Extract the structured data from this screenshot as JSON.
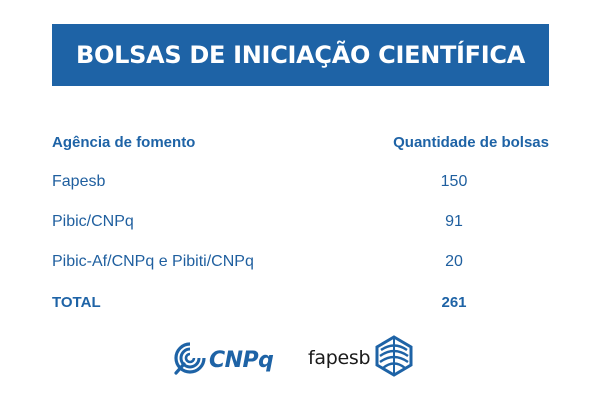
{
  "banner": {
    "title": "BOLSAS DE INICIAÇÃO CIENTÍFICA"
  },
  "table": {
    "headers": {
      "agency": "Agência de fomento",
      "quantity": "Quantidade de bolsas"
    },
    "rows": [
      {
        "agency": "Fapesb",
        "quantity": "150"
      },
      {
        "agency": "Pibic/CNPq",
        "quantity": "91"
      },
      {
        "agency": "Pibic-Af/CNPq e Pibiti/CNPq",
        "quantity": "20"
      }
    ],
    "total": {
      "label": "TOTAL",
      "quantity": "261"
    }
  },
  "logos": {
    "cnpq": {
      "text": "CNPq",
      "icon": "cnpq-spiral-icon"
    },
    "fapesb": {
      "text": "fapesb",
      "icon": "fapesb-dome-icon"
    }
  },
  "colors": {
    "brand_blue": "#1e63a6",
    "text_blue": "#1f5f9f",
    "fapesb_text": "#1a1a1a"
  }
}
